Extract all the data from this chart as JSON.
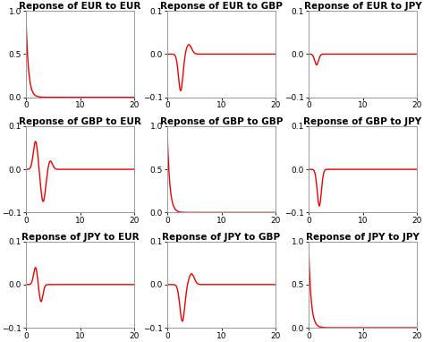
{
  "titles": [
    [
      "Reponse of EUR to EUR",
      "Reponse of EUR to GBP",
      "Reponse of EUR to JPY"
    ],
    [
      "Reponse of GBP to EUR",
      "Reponse of GBP to GBP",
      "Reponse of GBP to JPY"
    ],
    [
      "Reponse of JPY to EUR",
      "Reponse of JPY to GBP",
      "Reponse of JPY to JPY"
    ]
  ],
  "ylims": [
    [
      [
        0,
        1
      ],
      [
        -0.1,
        0.1
      ],
      [
        -0.1,
        0.1
      ]
    ],
    [
      [
        -0.1,
        0.1
      ],
      [
        0,
        1
      ],
      [
        -0.1,
        0.1
      ]
    ],
    [
      [
        -0.1,
        0.1
      ],
      [
        -0.1,
        0.1
      ],
      [
        0,
        1
      ]
    ]
  ],
  "xlim": [
    0,
    20
  ],
  "line_color": "#ee0000",
  "bg_color": "#ffffff",
  "title_fontsize": 7.5,
  "tick_fontsize": 6.5
}
